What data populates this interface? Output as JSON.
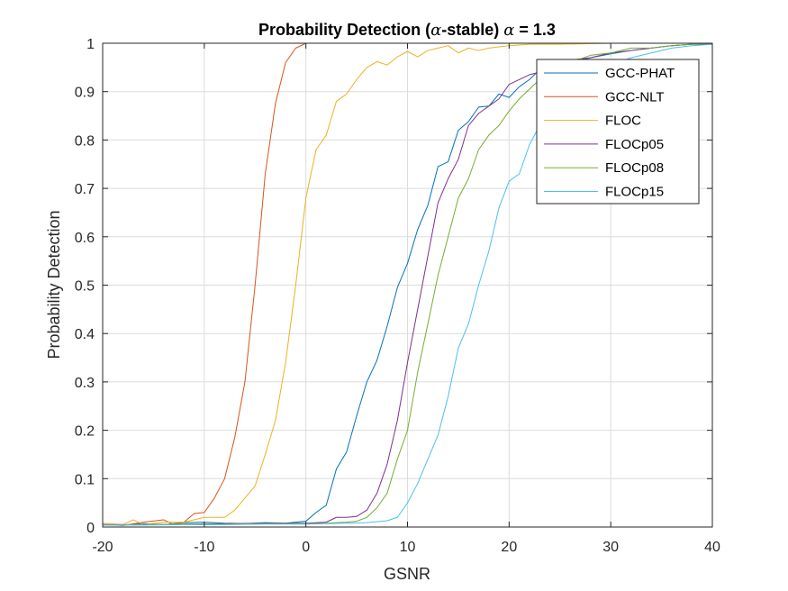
{
  "chart_data": {
    "type": "line",
    "title_main": "Probability Detection (",
    "title_symbol": "α",
    "title_rest": "-stable) ",
    "title_symbol2": "α",
    "title_value": " = 1.3",
    "xlabel": "GSNR",
    "ylabel": "Probability Detection",
    "xlim": [
      -20,
      40
    ],
    "ylim": [
      0,
      1
    ],
    "xticks": [
      "-20",
      "-10",
      "0",
      "10",
      "20",
      "30",
      "40"
    ],
    "yticks": [
      "0",
      "0.1",
      "0.2",
      "0.3",
      "0.4",
      "0.5",
      "0.6",
      "0.7",
      "0.8",
      "0.9",
      "1"
    ],
    "grid": true,
    "legend_position": "top-right",
    "series": [
      {
        "name": "GCC-PHAT",
        "color": "#0072BD",
        "x": [
          -20,
          -18,
          -16,
          -14,
          -12,
          -10,
          -8,
          -6,
          -4,
          -2,
          0,
          1,
          2,
          3,
          4,
          5,
          6,
          7,
          8,
          9,
          10,
          11,
          12,
          13,
          14,
          15,
          16,
          17,
          18,
          19,
          20,
          21,
          22,
          23,
          24,
          25,
          26,
          27,
          28,
          30,
          32,
          34,
          36,
          38,
          40
        ],
        "y": [
          0.005,
          0.004,
          0.007,
          0.005,
          0.009,
          0.01,
          0.008,
          0.007,
          0.009,
          0.008,
          0.012,
          0.03,
          0.045,
          0.12,
          0.155,
          0.23,
          0.3,
          0.345,
          0.415,
          0.495,
          0.545,
          0.615,
          0.665,
          0.745,
          0.755,
          0.82,
          0.838,
          0.868,
          0.87,
          0.895,
          0.888,
          0.91,
          0.925,
          0.945,
          0.95,
          0.955,
          0.96,
          0.965,
          0.97,
          0.978,
          0.985,
          0.99,
          0.995,
          0.998,
          0.998
        ]
      },
      {
        "name": "GCC-NLT",
        "color": "#D95319",
        "x": [
          -20,
          -18,
          -16,
          -14,
          -13,
          -12,
          -11,
          -10,
          -9,
          -8,
          -7,
          -6,
          -5,
          -4,
          -3,
          -2,
          -1,
          0,
          2,
          5,
          10,
          20,
          30,
          40
        ],
        "y": [
          0.005,
          0.003,
          0.01,
          0.015,
          0.005,
          0.01,
          0.028,
          0.03,
          0.06,
          0.1,
          0.185,
          0.3,
          0.5,
          0.73,
          0.875,
          0.96,
          0.99,
          1.0,
          1.0,
          1.0,
          1.0,
          1.0,
          1.0,
          1.0
        ]
      },
      {
        "name": "FLOC",
        "color": "#EDB120",
        "x": [
          -20,
          -18,
          -17,
          -16,
          -14,
          -12,
          -10,
          -8,
          -7,
          -6,
          -5,
          -4,
          -3,
          -2,
          -1,
          0,
          1,
          2,
          3,
          4,
          5,
          6,
          7,
          8,
          9,
          10,
          11,
          12,
          13,
          14,
          15,
          16,
          17,
          18,
          20,
          22,
          25,
          30,
          35,
          40
        ],
        "y": [
          0.008,
          0.005,
          0.015,
          0.005,
          0.01,
          0.01,
          0.02,
          0.02,
          0.035,
          0.06,
          0.085,
          0.15,
          0.22,
          0.34,
          0.5,
          0.68,
          0.78,
          0.81,
          0.88,
          0.895,
          0.925,
          0.95,
          0.962,
          0.955,
          0.972,
          0.983,
          0.972,
          0.985,
          0.99,
          0.995,
          0.98,
          0.99,
          0.985,
          0.99,
          0.995,
          0.998,
          0.998,
          1.0,
          1.0,
          1.0
        ]
      },
      {
        "name": "FLOCp05",
        "color": "#7E2F8E",
        "x": [
          -20,
          -16,
          -12,
          -8,
          -4,
          0,
          2,
          3,
          4,
          5,
          6,
          7,
          8,
          9,
          10,
          11,
          12,
          13,
          14,
          15,
          16,
          17,
          18,
          19,
          20,
          21,
          22,
          23,
          24,
          25,
          26,
          28,
          30,
          32,
          34,
          36,
          38,
          40
        ],
        "y": [
          0.005,
          0.005,
          0.006,
          0.007,
          0.008,
          0.008,
          0.01,
          0.02,
          0.02,
          0.022,
          0.035,
          0.07,
          0.13,
          0.22,
          0.34,
          0.45,
          0.56,
          0.67,
          0.72,
          0.76,
          0.83,
          0.855,
          0.87,
          0.885,
          0.915,
          0.925,
          0.935,
          0.94,
          0.95,
          0.96,
          0.965,
          0.97,
          0.98,
          0.985,
          0.99,
          0.995,
          0.998,
          0.998
        ]
      },
      {
        "name": "FLOCp08",
        "color": "#77AC30",
        "x": [
          -20,
          -16,
          -12,
          -8,
          -4,
          0,
          2,
          4,
          5,
          6,
          7,
          8,
          9,
          10,
          11,
          12,
          13,
          14,
          15,
          16,
          17,
          18,
          19,
          20,
          21,
          22,
          23,
          24,
          25,
          26,
          28,
          30,
          32,
          34,
          36,
          38,
          40
        ],
        "y": [
          0.004,
          0.005,
          0.006,
          0.006,
          0.007,
          0.007,
          0.008,
          0.01,
          0.012,
          0.02,
          0.04,
          0.07,
          0.14,
          0.2,
          0.32,
          0.42,
          0.52,
          0.6,
          0.68,
          0.72,
          0.78,
          0.81,
          0.83,
          0.86,
          0.885,
          0.905,
          0.925,
          0.94,
          0.95,
          0.96,
          0.975,
          0.98,
          0.99,
          0.99,
          0.995,
          0.998,
          1.0
        ]
      },
      {
        "name": "FLOCp15",
        "color": "#4DBEEE",
        "x": [
          -20,
          -16,
          -12,
          -8,
          -4,
          0,
          2,
          4,
          6,
          8,
          9,
          10,
          11,
          12,
          13,
          14,
          15,
          16,
          17,
          18,
          19,
          20,
          21,
          22,
          23,
          24,
          25,
          26,
          27,
          28,
          30,
          32,
          34,
          36,
          38,
          40
        ],
        "y": [
          0.004,
          0.004,
          0.005,
          0.005,
          0.006,
          0.006,
          0.007,
          0.008,
          0.009,
          0.013,
          0.02,
          0.05,
          0.09,
          0.14,
          0.19,
          0.27,
          0.37,
          0.42,
          0.5,
          0.57,
          0.66,
          0.715,
          0.73,
          0.79,
          0.83,
          0.86,
          0.88,
          0.905,
          0.92,
          0.94,
          0.955,
          0.97,
          0.98,
          0.99,
          0.995,
          0.998
        ]
      }
    ]
  }
}
